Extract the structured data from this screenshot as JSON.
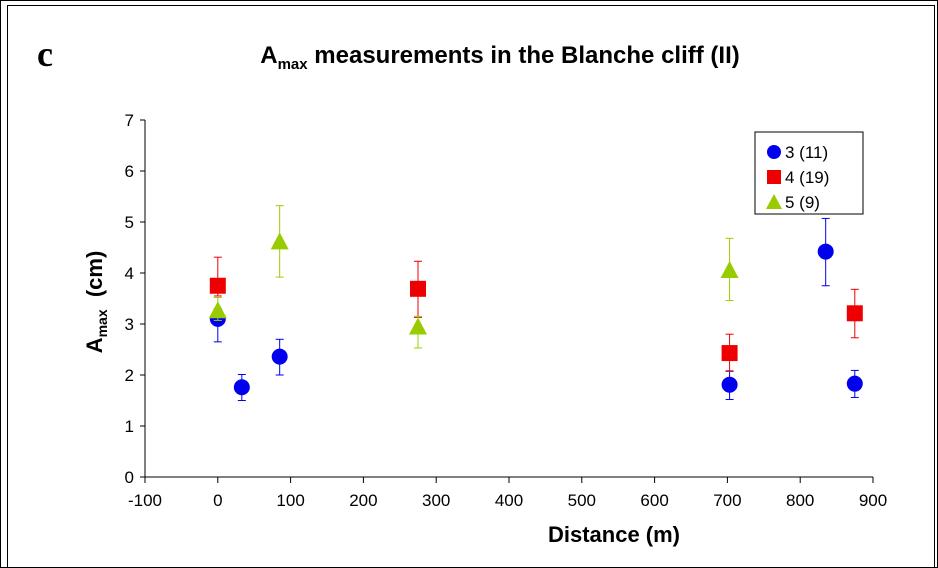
{
  "panel_letter": "c",
  "chart_data": {
    "type": "scatter",
    "title_main": "A",
    "title_sub": "max",
    "title_rest": " measurements in the Blanche cliff (II)",
    "xlabel": "Distance (m)",
    "ylabel_main": "A",
    "ylabel_sub": "max",
    "ylabel_rest": "  (cm)",
    "xlim": [
      -100,
      900
    ],
    "ylim": [
      0,
      7
    ],
    "xticks": [
      -100,
      0,
      100,
      200,
      300,
      400,
      500,
      600,
      700,
      800,
      900
    ],
    "yticks": [
      0,
      1,
      2,
      3,
      4,
      5,
      6,
      7
    ],
    "grid": false,
    "legend_position": "top-right",
    "series": [
      {
        "name": "3 (11)",
        "marker": "circle",
        "color": "#0000ee",
        "points": [
          {
            "x": 0,
            "y": 3.1,
            "err_up": 0.2,
            "err_down": 0.45
          },
          {
            "x": 33,
            "y": 1.76,
            "err_up": 0.25,
            "err_down": 0.26
          },
          {
            "x": 85,
            "y": 2.36,
            "err_up": 0.34,
            "err_down": 0.36
          },
          {
            "x": 703,
            "y": 1.81,
            "err_up": 0.27,
            "err_down": 0.29
          },
          {
            "x": 835,
            "y": 4.42,
            "err_up": 0.65,
            "err_down": 0.67
          },
          {
            "x": 875,
            "y": 1.83,
            "err_up": 0.26,
            "err_down": 0.27
          }
        ]
      },
      {
        "name": "4 (19)",
        "marker": "square",
        "color": "#ee0000",
        "points": [
          {
            "x": 0,
            "y": 3.75,
            "err_up": 0.56,
            "err_down": 0.2
          },
          {
            "x": 275,
            "y": 3.69,
            "err_up": 0.54,
            "err_down": 0.56
          },
          {
            "x": 703,
            "y": 2.43,
            "err_up": 0.37,
            "err_down": 0.36
          },
          {
            "x": 875,
            "y": 3.21,
            "err_up": 0.47,
            "err_down": 0.48
          }
        ]
      },
      {
        "name": "5 (9)",
        "marker": "triangle",
        "color": "#99cc00",
        "points": [
          {
            "x": 0,
            "y": 3.27,
            "err_up": 0.25,
            "err_down": 0.2
          },
          {
            "x": 85,
            "y": 4.62,
            "err_up": 0.7,
            "err_down": 0.7
          },
          {
            "x": 275,
            "y": 2.95,
            "err_up": 0.2,
            "err_down": 0.42
          },
          {
            "x": 703,
            "y": 4.06,
            "err_up": 0.62,
            "err_down": 0.6
          }
        ]
      }
    ]
  }
}
